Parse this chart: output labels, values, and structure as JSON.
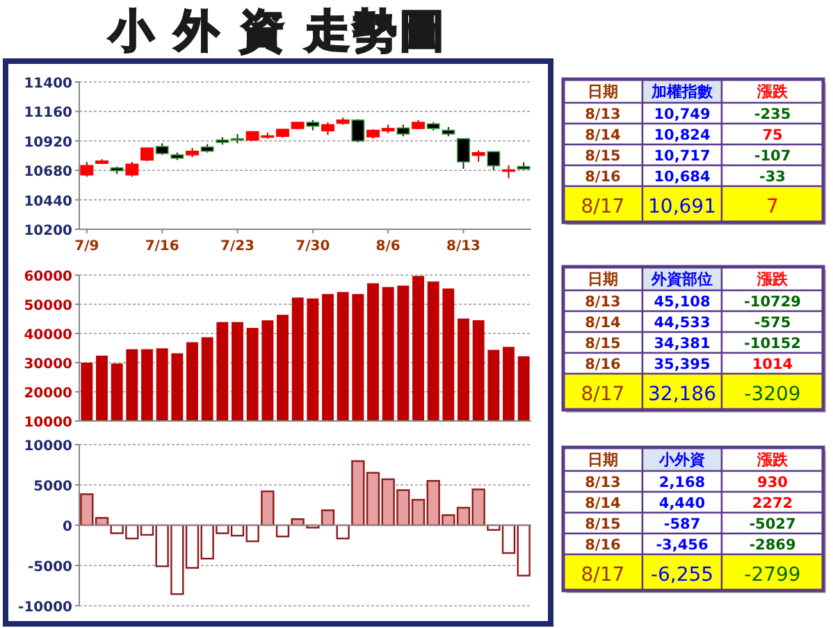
{
  "chart_data": [
    {
      "type": "candlestick",
      "title": "小 外 資 走勢圖",
      "categories": [
        "7/9",
        null,
        null,
        null,
        null,
        "7/16",
        null,
        null,
        null,
        null,
        "7/23",
        null,
        null,
        null,
        null,
        "7/30",
        null,
        null,
        null,
        null,
        "8/6",
        null,
        null,
        null,
        null,
        "8/13",
        null,
        null,
        null,
        null
      ],
      "ohlc": [
        [
          10643,
          10749,
          10628,
          10719
        ],
        [
          10737,
          10772,
          10733,
          10756
        ],
        [
          10700,
          10711,
          10650,
          10677
        ],
        [
          10643,
          10749,
          10628,
          10730
        ],
        [
          10764,
          10862,
          10756,
          10862
        ],
        [
          10874,
          10900,
          10806,
          10817
        ],
        [
          10806,
          10825,
          10764,
          10779
        ],
        [
          10806,
          10862,
          10787,
          10836
        ],
        [
          10870,
          10893,
          10825,
          10836
        ],
        [
          10927,
          10950,
          10889,
          10908
        ],
        [
          10938,
          10976,
          10900,
          10927
        ],
        [
          10927,
          10995,
          10919,
          10995
        ],
        [
          10953,
          10987,
          10938,
          10961
        ],
        [
          10957,
          11018,
          10946,
          11014
        ],
        [
          11021,
          11071,
          11014,
          11071
        ],
        [
          11071,
          11090,
          11006,
          11040
        ],
        [
          11002,
          11071,
          10968,
          11052
        ],
        [
          11063,
          11109,
          11052,
          11090
        ],
        [
          11090,
          11097,
          10908,
          10919
        ],
        [
          10953,
          11014,
          10938,
          11006
        ],
        [
          11002,
          11052,
          10983,
          11021
        ],
        [
          11025,
          11052,
          10957,
          10976
        ],
        [
          11021,
          11090,
          11014,
          11071
        ],
        [
          11059,
          11071,
          11006,
          11021
        ],
        [
          11006,
          11033,
          10957,
          10976
        ],
        [
          10938,
          10938,
          10692,
          10749
        ],
        [
          10802,
          10843,
          10749,
          10824
        ],
        [
          10832,
          10832,
          10681,
          10717
        ],
        [
          10677,
          10722,
          10616,
          10684
        ],
        [
          10711,
          10745,
          10684,
          10691
        ]
      ],
      "ylim": [
        10200,
        11400
      ],
      "yticks": [
        10200,
        10440,
        10680,
        10920,
        11160,
        11400
      ],
      "grid": "y"
    },
    {
      "type": "bar",
      "categories": [
        null,
        null,
        null,
        null,
        null,
        null,
        null,
        null,
        null,
        null,
        null,
        null,
        null,
        null,
        null,
        null,
        null,
        null,
        null,
        null,
        null,
        null,
        null,
        null,
        null,
        null,
        null,
        null,
        null,
        null
      ],
      "values": [
        30000,
        32400,
        29700,
        34600,
        34600,
        34900,
        33200,
        37000,
        38700,
        43900,
        43900,
        41900,
        44500,
        46400,
        52300,
        52000,
        53500,
        54200,
        53500,
        57200,
        55900,
        56400,
        59700,
        57800,
        55400,
        45108,
        44533,
        34381,
        35395,
        32186
      ],
      "color": "#c00000",
      "ylim": [
        10000,
        60000
      ],
      "yticks": [
        10000,
        20000,
        30000,
        40000,
        50000,
        60000
      ],
      "grid": "y"
    },
    {
      "type": "bar",
      "categories": [
        null,
        null,
        null,
        null,
        null,
        null,
        null,
        null,
        null,
        null,
        null,
        null,
        null,
        null,
        null,
        null,
        null,
        null,
        null,
        null,
        null,
        null,
        null,
        null,
        null,
        null,
        null,
        null,
        null,
        null
      ],
      "values": [
        3850,
        900,
        -1000,
        -1650,
        -1200,
        -5100,
        -8550,
        -5300,
        -4150,
        -1000,
        -1300,
        -2000,
        4200,
        -1400,
        750,
        -300,
        1850,
        -1650,
        7950,
        6500,
        5700,
        4350,
        3150,
        5500,
        1250,
        2168,
        4440,
        -587,
        -3456,
        -6255
      ],
      "colors": [
        "#e6a0a0",
        "#e6a0a0",
        "#ffffff",
        "#ffffff",
        "#ffffff",
        "#ffffff",
        "#ffffff",
        "#ffffff",
        "#ffffff",
        "#ffffff",
        "#ffffff",
        "#ffffff",
        "#e6a0a0",
        "#ffffff",
        "#e6a0a0",
        "#ffffff",
        "#e6a0a0",
        "#ffffff",
        "#e6a0a0",
        "#e6a0a0",
        "#e6a0a0",
        "#e6a0a0",
        "#e6a0a0",
        "#e6a0a0",
        "#e6a0a0",
        "#e6a0a0",
        "#e6a0a0",
        "#ffffff",
        "#ffffff",
        "#ffffff"
      ],
      "ylim": [
        -10000,
        10000
      ],
      "yticks": [
        -10000,
        -5000,
        0,
        5000,
        10000
      ],
      "grid": "y"
    },
    {
      "type": "other",
      "annotations": [
        "日期",
        "加權指數",
        "漲跌",
        "8/13",
        "10,749",
        "-235",
        "8/14",
        "10,824",
        "75",
        "8/15",
        "10,717",
        "-107",
        "8/16",
        "10,684",
        "-33",
        "8/17",
        "10,691",
        "7"
      ],
      "colors": [
        "#993300",
        "#0000ff",
        "#ff0000",
        "#993300",
        "#0000ff",
        "#006600",
        "#993300",
        "#0000ff",
        "#ff0000",
        "#993300",
        "#0000ff",
        "#006600",
        "#993300",
        "#0000ff",
        "#006600",
        "#993300",
        "#0000ff",
        "#ff0000"
      ]
    },
    {
      "type": "other",
      "annotations": [
        "日期",
        "外資部位",
        "漲跌",
        "8/13",
        "45,108",
        "-10729",
        "8/14",
        "44,533",
        "-575",
        "8/15",
        "34,381",
        "-10152",
        "8/16",
        "35,395",
        "1014",
        "8/17",
        "32,186",
        "-3209"
      ],
      "colors": [
        "#993300",
        "#0000ff",
        "#ff0000",
        "#993300",
        "#0000ff",
        "#006600",
        "#993300",
        "#0000ff",
        "#006600",
        "#993300",
        "#0000ff",
        "#006600",
        "#993300",
        "#0000ff",
        "#ff0000",
        "#993300",
        "#0000ff",
        "#006600"
      ]
    },
    {
      "type": "other",
      "annotations": [
        "日期",
        "小外資",
        "漲跌",
        "8/13",
        "2,168",
        "930",
        "8/14",
        "4,440",
        "2272",
        "8/15",
        "-587",
        "-5027",
        "8/16",
        "-3,456",
        "-2869",
        "8/17",
        "-6,255",
        "-2799"
      ],
      "colors": [
        "#993300",
        "#0000ff",
        "#ff0000",
        "#993300",
        "#0000ff",
        "#ff0000",
        "#993300",
        "#0000ff",
        "#ff0000",
        "#993300",
        "#0000ff",
        "#006600",
        "#993300",
        "#0000ff",
        "#006600",
        "#993300",
        "#0000ff",
        "#006600"
      ]
    }
  ]
}
